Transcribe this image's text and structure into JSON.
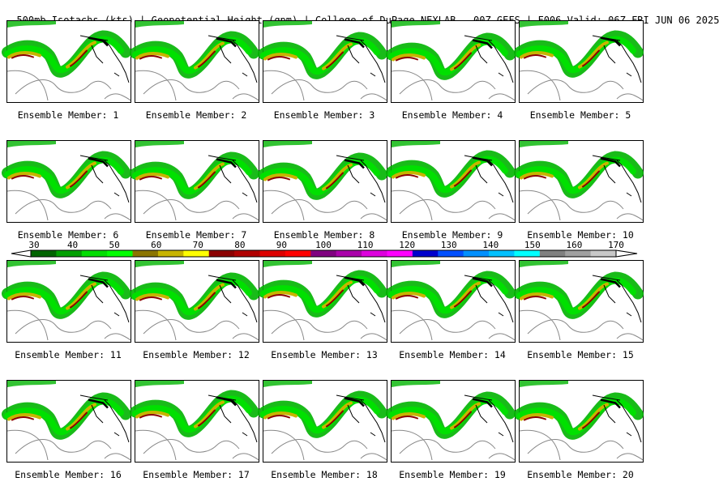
{
  "header": {
    "title": "500mb Isotachs (kts) | Geopotential Height (gpm) | College of DuPage NEXLAB",
    "run": "00Z GEFS | F006 Valid: 06Z FRI JUN 06 2025"
  },
  "members": [
    "Ensemble Member: 1",
    "Ensemble Member: 2",
    "Ensemble Member: 3",
    "Ensemble Member: 4",
    "Ensemble Member: 5",
    "Ensemble Member: 6",
    "Ensemble Member: 7",
    "Ensemble Member: 8",
    "Ensemble Member: 9",
    "Ensemble Member: 10",
    "Ensemble Member: 11",
    "Ensemble Member: 12",
    "Ensemble Member: 13",
    "Ensemble Member: 14",
    "Ensemble Member: 15",
    "Ensemble Member: 16",
    "Ensemble Member: 17",
    "Ensemble Member: 18",
    "Ensemble Member: 19",
    "Ensemble Member: 20"
  ],
  "colorbar": {
    "labels": [
      "30",
      "40",
      "50",
      "60",
      "70",
      "80",
      "90",
      "100",
      "110",
      "120",
      "130",
      "140",
      "150",
      "160",
      "170"
    ],
    "colors": [
      "#006400",
      "#00a000",
      "#00dd00",
      "#00ff00",
      "#8b7500",
      "#c8b400",
      "#ffff00",
      "#8b0000",
      "#b00000",
      "#dd0000",
      "#ff0000",
      "#800080",
      "#aa00aa",
      "#dd00dd",
      "#ff00ff",
      "#0000cc",
      "#0050ff",
      "#0090ff",
      "#00c0ff",
      "#00ffff",
      "#808080",
      "#a0a0a0",
      "#c8c8c8"
    ]
  }
}
